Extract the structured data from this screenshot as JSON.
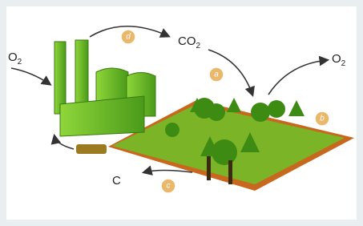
{
  "labels": {
    "oxygen_in": {
      "text": "O",
      "sub": "2"
    },
    "carbon_dioxide": {
      "text": "CO",
      "sub": "2"
    },
    "oxygen_out": {
      "text": "O",
      "sub": "2"
    },
    "carbon": {
      "text": "C"
    }
  },
  "badges": [
    "d",
    "a",
    "b",
    "c"
  ]
}
